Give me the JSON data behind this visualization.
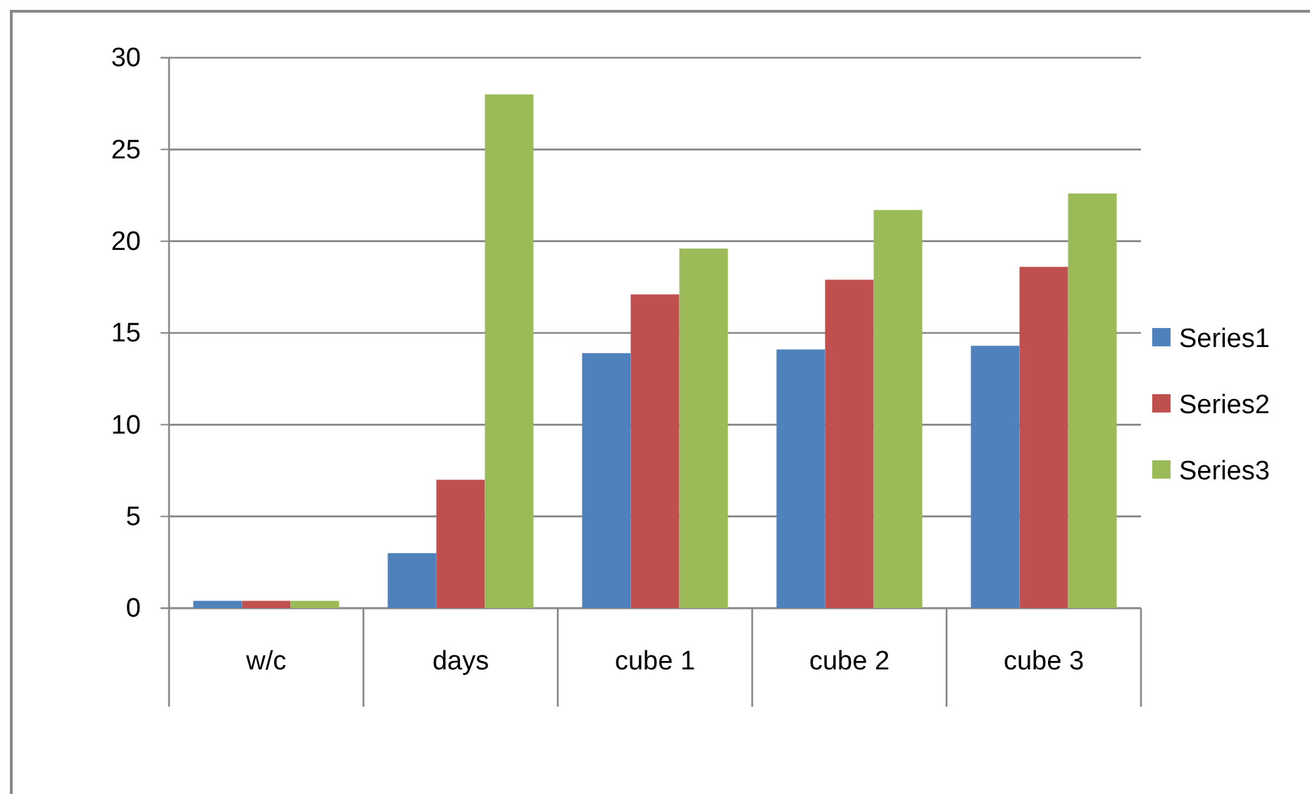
{
  "chart_data": {
    "type": "bar",
    "categories": [
      "w/c",
      "days",
      "cube 1",
      "cube 2",
      "cube 3"
    ],
    "series": [
      {
        "name": "Series1",
        "color": "#4f81bd",
        "values": [
          0.4,
          3,
          13.9,
          14.1,
          14.3
        ]
      },
      {
        "name": "Series2",
        "color": "#c0504d",
        "values": [
          0.4,
          7,
          17.1,
          17.9,
          18.6
        ]
      },
      {
        "name": "Series3",
        "color": "#9bbb59",
        "values": [
          0.4,
          28,
          19.6,
          21.7,
          22.6
        ]
      }
    ],
    "ylim": [
      0,
      30
    ],
    "yticks": [
      0,
      5,
      10,
      15,
      20,
      25,
      30
    ],
    "grid": "y",
    "legend": "right"
  }
}
